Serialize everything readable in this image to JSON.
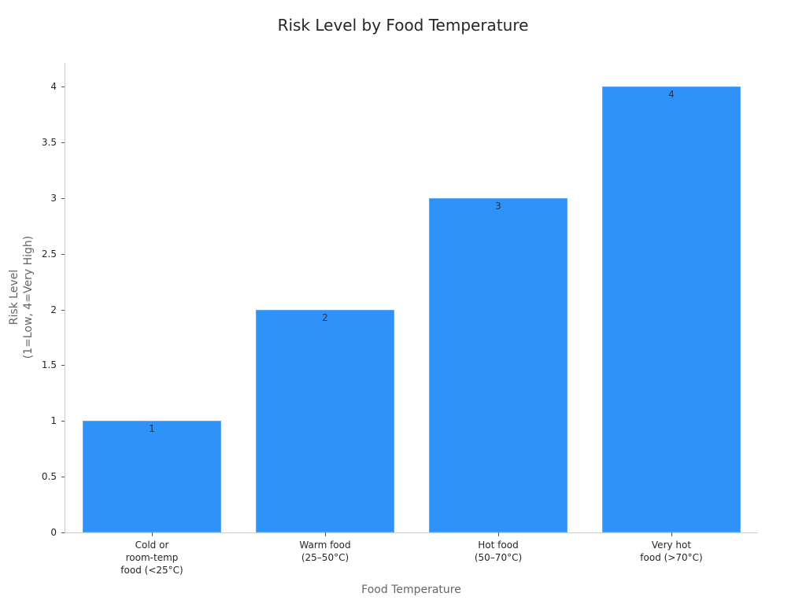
{
  "chart_data": {
    "type": "bar",
    "title": "Risk Level by Food Temperature",
    "xlabel": "Food Temperature",
    "ylabel": "Risk Level\n(1=Low, 4=Very High)",
    "categories": [
      "Cold or\nroom-temp\nfood (<25°C)",
      "Warm food\n(25–50°C)",
      "Hot food\n(50–70°C)",
      "Very hot\nfood (>70°C)"
    ],
    "values": [
      1,
      2,
      3,
      4
    ],
    "data_labels": [
      "1",
      "2",
      "3",
      "4"
    ],
    "ylim": [
      0,
      4.2
    ],
    "yticks": [
      "0",
      "0.5",
      "1",
      "1.5",
      "2",
      "2.5",
      "3",
      "3.5",
      "4"
    ],
    "grid": false,
    "legend": null,
    "bar_color": "#2f92f8"
  }
}
